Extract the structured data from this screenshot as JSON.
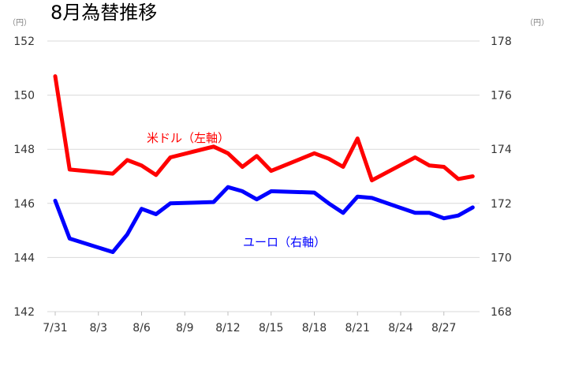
{
  "chart_data": {
    "type": "line",
    "title": "8月為替推移",
    "unit_left": "（円）",
    "unit_right": "（円）",
    "x_tick_labels": [
      "7/31",
      "8/3",
      "8/6",
      "8/9",
      "8/12",
      "8/15",
      "8/18",
      "8/21",
      "8/24",
      "8/27"
    ],
    "x_tick_days": [
      0,
      3,
      6,
      9,
      12,
      15,
      18,
      21,
      24,
      27
    ],
    "y_left": {
      "lim": [
        142,
        152
      ],
      "ticks": [
        142,
        144,
        146,
        148,
        150,
        152
      ]
    },
    "y_right": {
      "lim": [
        168,
        178
      ],
      "ticks": [
        168,
        170,
        172,
        174,
        176,
        178
      ]
    },
    "grid": "horizontal",
    "series": [
      {
        "name": "米ドル（左軸）",
        "axis": "left",
        "color": "#ff0000",
        "points": [
          [
            0,
            150.7
          ],
          [
            1,
            147.25
          ],
          [
            4,
            147.1
          ],
          [
            5,
            147.6
          ],
          [
            6,
            147.4
          ],
          [
            7,
            147.05
          ],
          [
            8,
            147.7
          ],
          [
            11,
            148.1
          ],
          [
            12,
            147.85
          ],
          [
            13,
            147.35
          ],
          [
            14,
            147.75
          ],
          [
            15,
            147.2
          ],
          [
            18,
            147.85
          ],
          [
            19,
            147.65
          ],
          [
            20,
            147.35
          ],
          [
            21,
            148.4
          ],
          [
            22,
            146.85
          ],
          [
            25,
            147.7
          ],
          [
            26,
            147.4
          ],
          [
            27,
            147.35
          ],
          [
            28,
            146.9
          ],
          [
            29,
            147.0
          ]
        ]
      },
      {
        "name": "ユーロ（右軸）",
        "axis": "right",
        "color": "#0000ff",
        "points": [
          [
            0,
            172.1
          ],
          [
            1,
            170.7
          ],
          [
            4,
            170.2
          ],
          [
            5,
            170.85
          ],
          [
            6,
            171.8
          ],
          [
            7,
            171.6
          ],
          [
            8,
            172.0
          ],
          [
            11,
            172.05
          ],
          [
            12,
            172.6
          ],
          [
            13,
            172.45
          ],
          [
            14,
            172.15
          ],
          [
            15,
            172.45
          ],
          [
            18,
            172.4
          ],
          [
            19,
            172.0
          ],
          [
            20,
            171.65
          ],
          [
            21,
            172.25
          ],
          [
            22,
            172.2
          ],
          [
            25,
            171.65
          ],
          [
            26,
            171.65
          ],
          [
            27,
            171.45
          ],
          [
            28,
            171.55
          ],
          [
            29,
            171.85
          ]
        ]
      }
    ]
  }
}
